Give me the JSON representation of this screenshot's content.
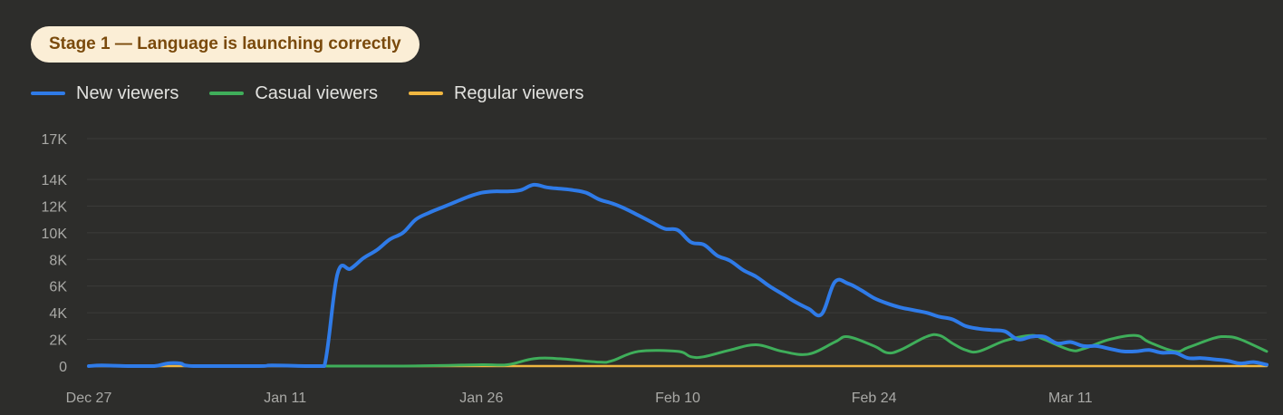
{
  "badge": {
    "label": "Stage 1 — Language is launching correctly"
  },
  "colors": {
    "background": "#2d2d2b",
    "badge_bg": "#fbeed6",
    "badge_text": "#7a4a0c",
    "grid": "#3c3c3a",
    "tick_text": "#a9a9a6",
    "legend_text": "#e2e2df"
  },
  "chart_data": {
    "type": "line",
    "x_tick_labels": [
      "Dec 27",
      "Jan 11",
      "Jan 26",
      "Feb 10",
      "Feb 24",
      "Mar 11"
    ],
    "y_tick_labels": [
      "0",
      "2K",
      "4K",
      "6K",
      "8K",
      "10K",
      "12K",
      "14K",
      "17K"
    ],
    "y_ticks": [
      0,
      2000,
      4000,
      6000,
      8000,
      10000,
      12000,
      14000,
      17000
    ],
    "ylim": [
      0,
      17000
    ],
    "x_range": [
      "2023-12-27",
      "2024-03-26"
    ],
    "grid": true,
    "legend_position": "top-left",
    "series": [
      {
        "name": "New viewers",
        "color": "#2f7be8",
        "points": [
          [
            "2023-12-27",
            0
          ],
          [
            "2023-12-28",
            50
          ],
          [
            "2023-12-30",
            0
          ],
          [
            "2024-01-01",
            0
          ],
          [
            "2024-01-02",
            200
          ],
          [
            "2024-01-03",
            200
          ],
          [
            "2024-01-04",
            0
          ],
          [
            "2024-01-09",
            0
          ],
          [
            "2024-01-10",
            50
          ],
          [
            "2024-01-13",
            0
          ],
          [
            "2024-01-14",
            0
          ],
          [
            "2024-01-15",
            6900
          ],
          [
            "2024-01-16",
            7300
          ],
          [
            "2024-01-17",
            8100
          ],
          [
            "2024-01-18",
            8700
          ],
          [
            "2024-01-19",
            9500
          ],
          [
            "2024-01-20",
            10000
          ],
          [
            "2024-01-21",
            11000
          ],
          [
            "2024-01-22",
            11500
          ],
          [
            "2024-01-23",
            11900
          ],
          [
            "2024-01-24",
            12300
          ],
          [
            "2024-01-25",
            12700
          ],
          [
            "2024-01-26",
            13000
          ],
          [
            "2024-01-27",
            13100
          ],
          [
            "2024-01-28",
            13100
          ],
          [
            "2024-01-29",
            13200
          ],
          [
            "2024-01-30",
            13600
          ],
          [
            "2024-01-31",
            13400
          ],
          [
            "2024-02-01",
            13300
          ],
          [
            "2024-02-02",
            13200
          ],
          [
            "2024-02-03",
            13000
          ],
          [
            "2024-02-04",
            12500
          ],
          [
            "2024-02-05",
            12200
          ],
          [
            "2024-02-06",
            11800
          ],
          [
            "2024-02-07",
            11300
          ],
          [
            "2024-02-08",
            10800
          ],
          [
            "2024-02-09",
            10300
          ],
          [
            "2024-02-10",
            10200
          ],
          [
            "2024-02-11",
            9300
          ],
          [
            "2024-02-12",
            9100
          ],
          [
            "2024-02-13",
            8300
          ],
          [
            "2024-02-14",
            7900
          ],
          [
            "2024-02-15",
            7200
          ],
          [
            "2024-02-16",
            6700
          ],
          [
            "2024-02-17",
            6000
          ],
          [
            "2024-02-18",
            5400
          ],
          [
            "2024-02-19",
            4800
          ],
          [
            "2024-02-20",
            4300
          ],
          [
            "2024-02-21",
            3900
          ],
          [
            "2024-02-22",
            6300
          ],
          [
            "2024-02-23",
            6200
          ],
          [
            "2024-02-24",
            5700
          ],
          [
            "2024-02-25",
            5100
          ],
          [
            "2024-02-26",
            4700
          ],
          [
            "2024-02-27",
            4400
          ],
          [
            "2024-02-28",
            4200
          ],
          [
            "2024-02-29",
            4000
          ],
          [
            "2024-03-01",
            3700
          ],
          [
            "2024-03-02",
            3500
          ],
          [
            "2024-03-03",
            3000
          ],
          [
            "2024-03-04",
            2800
          ],
          [
            "2024-03-05",
            2700
          ],
          [
            "2024-03-06",
            2600
          ],
          [
            "2024-03-07",
            2000
          ],
          [
            "2024-03-08",
            2200
          ],
          [
            "2024-03-09",
            2200
          ],
          [
            "2024-03-10",
            1700
          ],
          [
            "2024-03-11",
            1800
          ],
          [
            "2024-03-12",
            1500
          ],
          [
            "2024-03-13",
            1500
          ],
          [
            "2024-03-14",
            1300
          ],
          [
            "2024-03-15",
            1100
          ],
          [
            "2024-03-16",
            1100
          ],
          [
            "2024-03-17",
            1200
          ],
          [
            "2024-03-18",
            1000
          ],
          [
            "2024-03-19",
            1000
          ],
          [
            "2024-03-20",
            600
          ],
          [
            "2024-03-21",
            600
          ],
          [
            "2024-03-22",
            500
          ],
          [
            "2024-03-23",
            400
          ],
          [
            "2024-03-24",
            200
          ],
          [
            "2024-03-25",
            300
          ],
          [
            "2024-03-26",
            100
          ]
        ]
      },
      {
        "name": "Casual viewers",
        "color": "#3fae5a",
        "points": [
          [
            "2024-01-13",
            0
          ],
          [
            "2024-01-20",
            0
          ],
          [
            "2024-01-26",
            100
          ],
          [
            "2024-01-28",
            100
          ],
          [
            "2024-01-30",
            550
          ],
          [
            "2024-02-01",
            550
          ],
          [
            "2024-02-04",
            300
          ],
          [
            "2024-02-05",
            400
          ],
          [
            "2024-02-07",
            1100
          ],
          [
            "2024-02-10",
            1100
          ],
          [
            "2024-02-11",
            700
          ],
          [
            "2024-02-12",
            700
          ],
          [
            "2024-02-14",
            1200
          ],
          [
            "2024-02-16",
            1600
          ],
          [
            "2024-02-18",
            1100
          ],
          [
            "2024-02-20",
            900
          ],
          [
            "2024-02-22",
            1800
          ],
          [
            "2024-02-23",
            2200
          ],
          [
            "2024-02-25",
            1500
          ],
          [
            "2024-02-26",
            1000
          ],
          [
            "2024-02-27",
            1200
          ],
          [
            "2024-02-29",
            2200
          ],
          [
            "2024-03-01",
            2300
          ],
          [
            "2024-03-02",
            1700
          ],
          [
            "2024-03-03",
            1200
          ],
          [
            "2024-03-04",
            1100
          ],
          [
            "2024-03-06",
            1900
          ],
          [
            "2024-03-08",
            2300
          ],
          [
            "2024-03-09",
            2000
          ],
          [
            "2024-03-11",
            1200
          ],
          [
            "2024-03-12",
            1300
          ],
          [
            "2024-03-14",
            2000
          ],
          [
            "2024-03-16",
            2300
          ],
          [
            "2024-03-17",
            1800
          ],
          [
            "2024-03-19",
            1100
          ],
          [
            "2024-03-20",
            1400
          ],
          [
            "2024-03-22",
            2100
          ],
          [
            "2024-03-23",
            2200
          ],
          [
            "2024-03-24",
            2000
          ],
          [
            "2024-03-26",
            1100
          ]
        ]
      },
      {
        "name": "Regular viewers",
        "color": "#f0b640",
        "points": [
          [
            "2023-12-27",
            0
          ],
          [
            "2024-01-13",
            0
          ],
          [
            "2024-03-26",
            0
          ]
        ]
      }
    ]
  }
}
